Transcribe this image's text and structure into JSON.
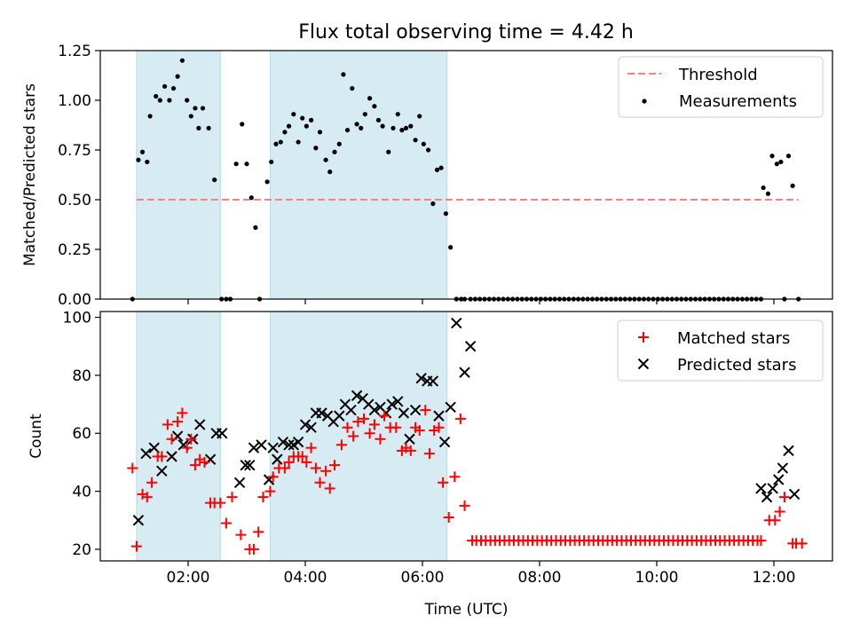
{
  "figure": {
    "title": "Flux total observing time = 4.42 h"
  },
  "colors": {
    "shade": "#add8e6",
    "threshold": "#ff7f7f",
    "measurement": "#000000",
    "matched": "#ff0000",
    "predicted": "#000000"
  },
  "chart_data": [
    {
      "type": "scatter",
      "name": "ratio",
      "title": "Flux total observing time = 4.42 h",
      "xlabel": "",
      "ylabel": "Matched/Predicted stars",
      "xlim": [
        0.5,
        13.0
      ],
      "ylim": [
        0.0,
        1.25
      ],
      "yticks": [
        0.0,
        0.25,
        0.5,
        0.75,
        1.0,
        1.25
      ],
      "ytick_labels": [
        "0.00",
        "0.25",
        "0.50",
        "0.75",
        "1.00",
        "1.25"
      ],
      "xticks": [
        2,
        4,
        6,
        8,
        10,
        12
      ],
      "grid": false,
      "legend": "upper right",
      "shaded_intervals": [
        [
          1.12,
          2.55
        ],
        [
          3.4,
          6.42
        ]
      ],
      "threshold": {
        "name": "Threshold",
        "y": 0.5,
        "x": [
          1.12,
          12.42
        ]
      },
      "series": [
        {
          "name": "Measurements",
          "x": [
            1.05,
            1.15,
            1.22,
            1.3,
            1.35,
            1.45,
            1.52,
            1.6,
            1.68,
            1.75,
            1.82,
            1.9,
            1.98,
            2.05,
            2.12,
            2.18,
            2.25,
            2.35,
            2.45,
            2.57,
            2.65,
            2.72,
            2.82,
            2.92,
            3.0,
            3.08,
            3.15,
            3.22,
            3.35,
            3.42,
            3.5,
            3.58,
            3.65,
            3.72,
            3.8,
            3.88,
            3.95,
            4.02,
            4.1,
            4.18,
            4.25,
            4.35,
            4.42,
            4.5,
            4.58,
            4.65,
            4.72,
            4.8,
            4.88,
            4.95,
            5.02,
            5.1,
            5.18,
            5.25,
            5.32,
            5.42,
            5.5,
            5.58,
            5.65,
            5.72,
            5.8,
            5.88,
            5.95,
            6.02,
            6.1,
            6.18,
            6.25,
            6.32,
            6.4,
            6.48,
            6.58,
            6.66,
            6.72,
            6.82
          ],
          "y": [
            0.0,
            0.7,
            0.74,
            0.69,
            0.92,
            1.02,
            1.0,
            1.07,
            1.0,
            1.06,
            1.12,
            1.2,
            1.0,
            0.92,
            0.96,
            0.86,
            0.96,
            0.86,
            0.6,
            0.0,
            0.0,
            0.0,
            0.68,
            0.88,
            0.68,
            0.51,
            0.36,
            0.0,
            0.59,
            0.69,
            0.78,
            0.79,
            0.84,
            0.87,
            0.93,
            0.79,
            0.91,
            0.87,
            0.9,
            0.76,
            0.84,
            0.7,
            0.64,
            0.74,
            0.78,
            1.13,
            0.85,
            1.06,
            0.88,
            0.86,
            0.93,
            1.01,
            0.97,
            0.9,
            0.87,
            0.74,
            0.86,
            0.93,
            0.85,
            0.86,
            0.87,
            0.8,
            0.92,
            0.78,
            0.75,
            0.48,
            0.65,
            0.66,
            0.43,
            0.26,
            0.0,
            0.0,
            0.0,
            0.0
          ]
        },
        {
          "name": "",
          "x": [
            6.9,
            6.98,
            7.06,
            7.14,
            7.22,
            7.3,
            7.38,
            7.46,
            7.54,
            7.62,
            7.7,
            7.78,
            7.86,
            7.94,
            8.02,
            8.1,
            8.18,
            8.26,
            8.34,
            8.42,
            8.5,
            8.58,
            8.66,
            8.74,
            8.82,
            8.9,
            8.98,
            9.06,
            9.14,
            9.22,
            9.3,
            9.38,
            9.46,
            9.54,
            9.62,
            9.7,
            9.78,
            9.86,
            9.94,
            10.02,
            10.1,
            10.18,
            10.26,
            10.34,
            10.42,
            10.5,
            10.58,
            10.66,
            10.74,
            10.82,
            10.9,
            10.98,
            11.06,
            11.14,
            11.22,
            11.3,
            11.38,
            11.46,
            11.54,
            11.62,
            11.7,
            11.78
          ],
          "y": [
            0,
            0,
            0,
            0,
            0,
            0,
            0,
            0,
            0,
            0,
            0,
            0,
            0,
            0,
            0,
            0,
            0,
            0,
            0,
            0,
            0,
            0,
            0,
            0,
            0,
            0,
            0,
            0,
            0,
            0,
            0,
            0,
            0,
            0,
            0,
            0,
            0,
            0,
            0,
            0,
            0,
            0,
            0,
            0,
            0,
            0,
            0,
            0,
            0,
            0,
            0,
            0,
            0,
            0,
            0,
            0,
            0,
            0,
            0,
            0,
            0,
            0
          ]
        },
        {
          "name": "",
          "x": [
            11.82,
            11.9,
            11.97,
            12.05,
            12.12,
            12.18,
            12.25,
            12.32,
            12.42
          ],
          "y": [
            0.56,
            0.53,
            0.72,
            0.68,
            0.69,
            0.0,
            0.72,
            0.57,
            0.0
          ]
        }
      ]
    },
    {
      "type": "scatter",
      "name": "counts",
      "title": "",
      "xlabel": "Time (UTC)",
      "ylabel": "Count",
      "xlim": [
        0.5,
        13.0
      ],
      "ylim": [
        16,
        102
      ],
      "yticks": [
        20,
        40,
        60,
        80,
        100
      ],
      "ytick_labels": [
        "20",
        "40",
        "60",
        "80",
        "100"
      ],
      "xticks": [
        2,
        4,
        6,
        8,
        10,
        12
      ],
      "xtick_labels": [
        "02:00",
        "04:00",
        "06:00",
        "08:00",
        "10:00",
        "12:00"
      ],
      "grid": false,
      "legend": "upper right",
      "shaded_intervals": [
        [
          1.12,
          2.55
        ],
        [
          3.4,
          6.42
        ]
      ],
      "series": [
        {
          "name": "Matched stars",
          "x": [
            1.05,
            1.12,
            1.22,
            1.3,
            1.38,
            1.48,
            1.55,
            1.65,
            1.72,
            1.82,
            1.9,
            1.98,
            2.05,
            2.12,
            2.2,
            2.28,
            2.38,
            2.45,
            2.55,
            2.65,
            2.75,
            2.9,
            3.05,
            3.12,
            3.2,
            3.28,
            3.4,
            3.45,
            3.55,
            3.65,
            3.72,
            3.8,
            3.88,
            3.95,
            4.02,
            4.1,
            4.18,
            4.25,
            4.35,
            4.42,
            4.5,
            4.62,
            4.72,
            4.82,
            4.9,
            5.0,
            5.1,
            5.18,
            5.28,
            5.35,
            5.45,
            5.55,
            5.65,
            5.72,
            5.8,
            5.88,
            5.95,
            6.05,
            6.12,
            6.2,
            6.28,
            6.35,
            6.45,
            6.55,
            6.65,
            6.72,
            6.85,
            11.78,
            11.92,
            12.02,
            12.1,
            12.18,
            12.32
          ],
          "y": [
            48,
            21,
            39,
            38,
            43,
            52,
            52,
            63,
            58,
            64,
            67,
            55,
            58,
            49,
            51,
            50,
            36,
            36,
            36,
            29,
            38,
            25,
            20,
            20,
            26,
            38,
            40,
            45,
            48,
            48,
            50,
            52,
            52,
            52,
            50,
            55,
            48,
            43,
            47,
            41,
            49,
            56,
            62,
            59,
            64,
            65,
            60,
            63,
            58,
            66,
            62,
            62,
            54,
            55,
            54,
            62,
            61,
            68,
            53,
            61,
            62,
            43,
            31,
            45,
            65,
            35,
            23,
            23,
            30,
            30,
            33,
            38,
            22
          ],
          "extra_flat": {
            "x_start": 6.92,
            "x_end": 11.74,
            "step": 0.08,
            "y": 23
          },
          "extra_tail": {
            "x": [
              12.38,
              12.48
            ],
            "y": [
              22,
              22
            ]
          }
        },
        {
          "name": "Predicted stars",
          "x": [
            1.15,
            1.28,
            1.42,
            1.55,
            1.72,
            1.82,
            1.92,
            2.08,
            2.2,
            2.38,
            2.48,
            2.58,
            2.88,
            2.98,
            3.05,
            3.12,
            3.25,
            3.38,
            3.45,
            3.52,
            3.62,
            3.72,
            3.8,
            3.88,
            4.0,
            4.1,
            4.18,
            4.28,
            4.38,
            4.48,
            4.58,
            4.68,
            4.78,
            4.88,
            4.98,
            5.08,
            5.18,
            5.28,
            5.38,
            5.48,
            5.58,
            5.68,
            5.78,
            5.88,
            5.98,
            6.08,
            6.18,
            6.28,
            6.38,
            6.48,
            6.58,
            6.72,
            6.82,
            11.78,
            11.88,
            11.98,
            12.08,
            12.15,
            12.25,
            12.35
          ],
          "y": [
            30,
            53,
            55,
            47,
            52,
            59,
            56,
            58,
            63,
            51,
            60,
            60,
            43,
            49,
            49,
            55,
            56,
            44,
            55,
            51,
            57,
            56,
            56,
            57,
            63,
            62,
            67,
            67,
            66,
            64,
            66,
            70,
            68,
            73,
            72,
            70,
            68,
            69,
            67,
            70,
            71,
            67,
            58,
            68,
            79,
            78,
            78,
            66,
            57,
            69,
            98,
            81,
            90,
            41,
            38,
            41,
            44,
            48,
            54,
            39
          ]
        }
      ]
    }
  ]
}
